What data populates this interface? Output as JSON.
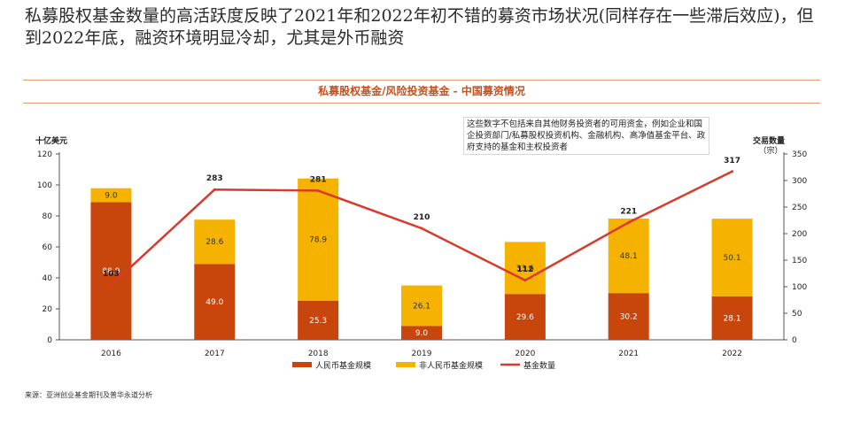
{
  "headline": "私募股权基金数量的高活跃度反映了2021年和2022年初不错的募资市场状况(同样存在一些滞后效应)，但到2022年底，融资环境明显冷却，尤其是外币融资",
  "note": "这些数字不包括来自其他财务投资者的可用资金，例如企业和国企投资部门/私募股权投资机构、金融机构、高净值基金平台、政府支持的基金和主权投资者",
  "source": "来源：亚洲创业基金期刊及普华永道分析",
  "colors": {
    "rmb": "#c8450c",
    "non_rmb": "#f5b300",
    "line": "#d93a2b",
    "accent": "#c5511e"
  },
  "chart_data": {
    "type": "bar",
    "title": "私募股权基金/风险投资基金 - 中国募资情况",
    "categories": [
      "2016",
      "2017",
      "2018",
      "2019",
      "2020",
      "2021",
      "2022"
    ],
    "series": [
      {
        "name": "人民币基金规模",
        "type": "stacked-bar",
        "values": [
          88.9,
          49.0,
          25.3,
          9.0,
          29.6,
          30.2,
          28.1
        ]
      },
      {
        "name": "非人民币基金规模",
        "type": "stacked-bar",
        "values": [
          9.0,
          28.6,
          78.9,
          26.1,
          33.6,
          48.1,
          50.1
        ]
      },
      {
        "name": "基金数量",
        "type": "line",
        "axis": "right",
        "values": [
          103,
          283,
          281,
          210,
          112,
          221,
          317
        ]
      }
    ],
    "left_axis": {
      "label": "十亿美元",
      "ylim": [
        0,
        120
      ],
      "ticks": [
        0,
        20,
        40,
        60,
        80,
        100,
        120
      ]
    },
    "right_axis": {
      "label_line1": "交易数量",
      "label_line2": "（宗）",
      "ylim": [
        0,
        350
      ],
      "ticks": [
        0,
        50,
        100,
        150,
        200,
        250,
        300,
        350
      ]
    },
    "legend_position": "bottom"
  }
}
